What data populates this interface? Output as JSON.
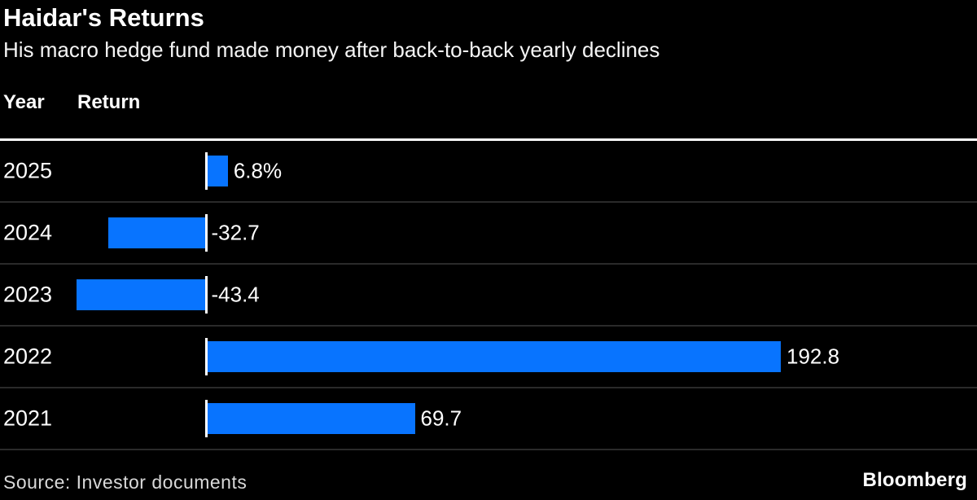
{
  "header": {
    "title": "Haidar's Returns",
    "subtitle": "His macro hedge fund made money after back-to-back yearly declines"
  },
  "table": {
    "year_header": "Year",
    "return_header": "Return"
  },
  "chart_data": {
    "type": "bar",
    "orientation": "horizontal",
    "title": "Haidar's Returns",
    "subtitle": "His macro hedge fund made money after back-to-back yearly declines",
    "ylabel": "Year",
    "xlabel": "Return",
    "categories": [
      "2025",
      "2024",
      "2023",
      "2022",
      "2021"
    ],
    "values": [
      6.8,
      -32.7,
      -43.4,
      192.8,
      69.7
    ],
    "value_labels": [
      "6.8%",
      "-32.7",
      "-43.4",
      "192.8",
      "69.7"
    ],
    "value_unit": "percent",
    "xlim": [
      -69,
      259
    ],
    "grid": false,
    "legend": false,
    "bar_color": "#0874ff",
    "baseline_color": "#ffffff",
    "negative_direction": "left"
  },
  "footer": {
    "source": "Source: Investor documents",
    "brand": "Bloomberg"
  }
}
